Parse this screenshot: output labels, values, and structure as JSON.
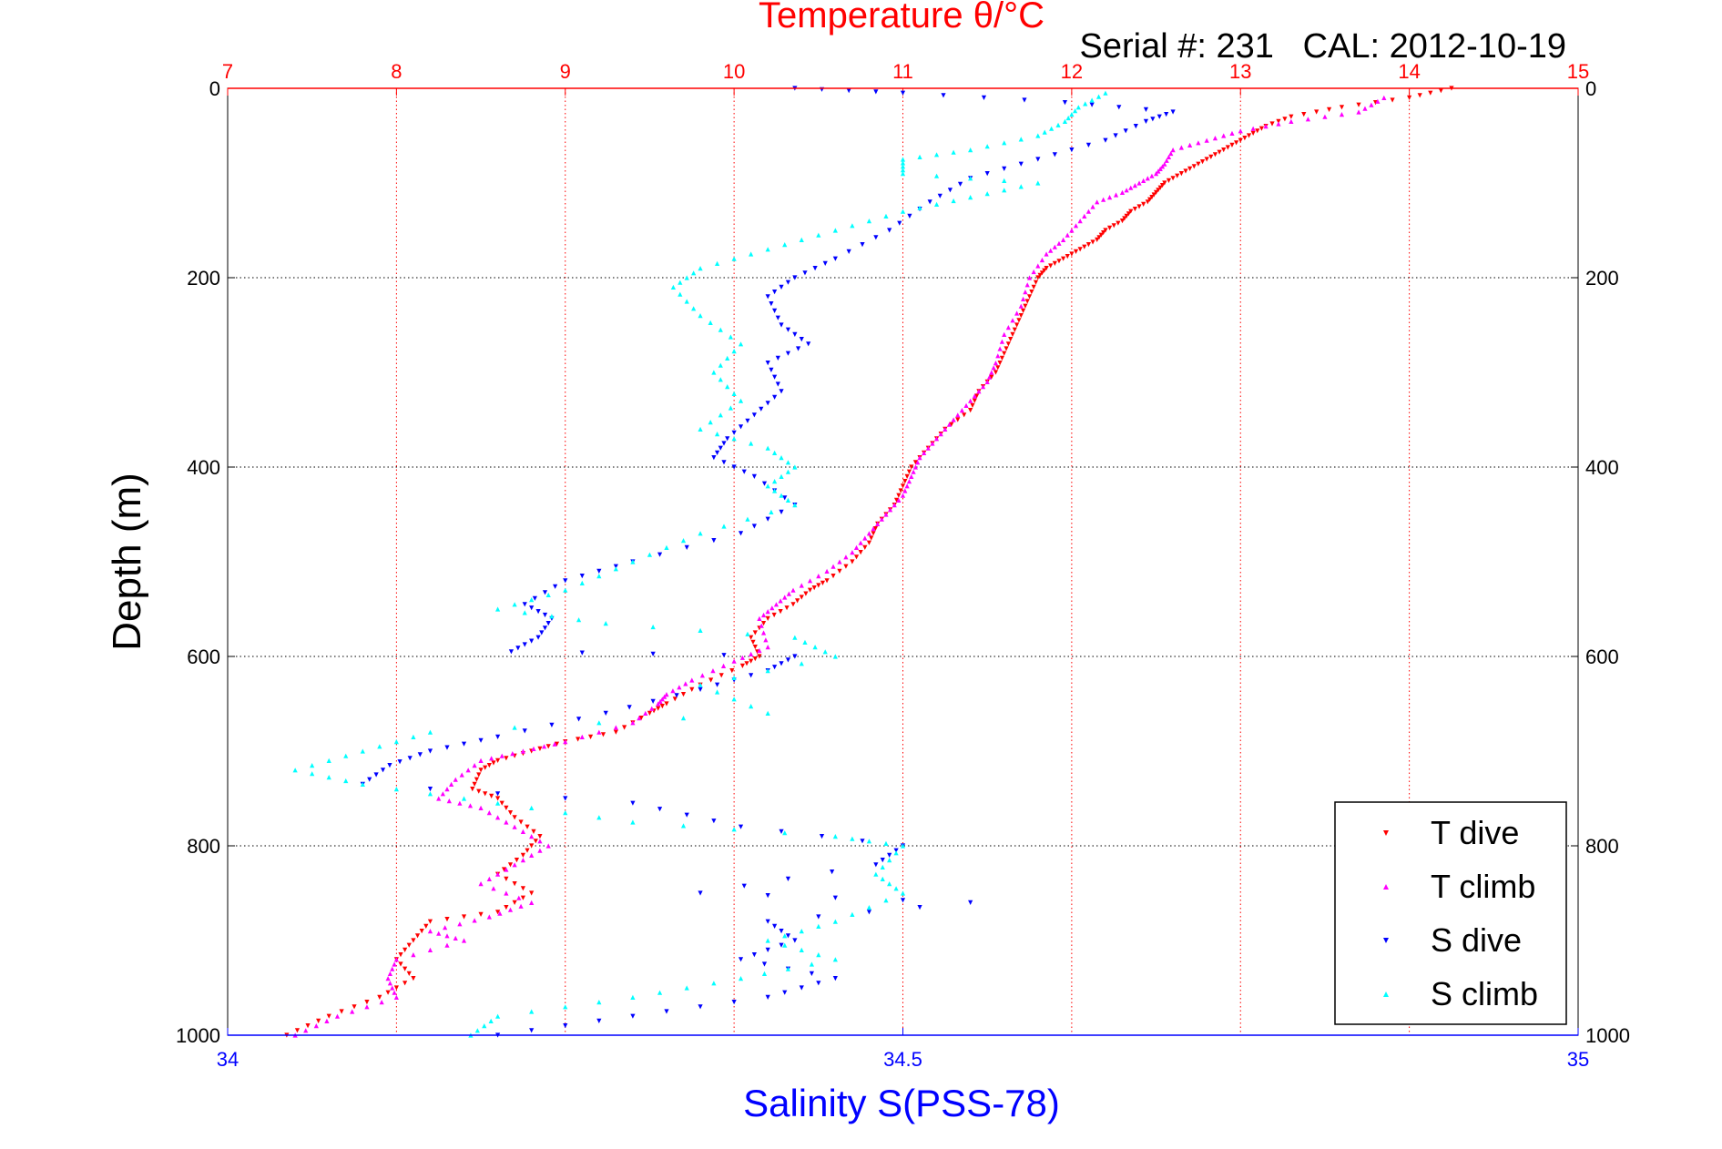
{
  "chart_data": {
    "type": "scatter",
    "title": "Temperature θ/°C",
    "subtitle": "Serial #: 231   CAL: 2012-10-19",
    "xlabel": "Salinity S(PSS-78)",
    "ylabel": "Depth (m)",
    "ylim": [
      0,
      1000
    ],
    "y_reversed": true,
    "y_ticks": [
      "0",
      "200",
      "400",
      "600",
      "800",
      "1000"
    ],
    "y_tick_values": [
      0,
      200,
      400,
      600,
      800,
      1000
    ],
    "top_axis": {
      "quantity": "temperature",
      "range": [
        7,
        15
      ],
      "ticks": [
        "7",
        "8",
        "9",
        "10",
        "11",
        "12",
        "13",
        "14",
        "15"
      ],
      "tick_values": [
        7,
        8,
        9,
        10,
        11,
        12,
        13,
        14,
        15
      ],
      "color": "#ff0000"
    },
    "bottom_axis": {
      "quantity": "salinity",
      "range": [
        34,
        35
      ],
      "ticks": [
        "34",
        "34.5",
        "35"
      ],
      "tick_values": [
        34,
        34.5,
        35
      ],
      "color": "#0000ff"
    },
    "grid": true,
    "legend_position": "bottom-right",
    "series": [
      {
        "name": "T dive",
        "axis": "top",
        "marker": "triangle-down",
        "color": "#ff0000",
        "points": [
          [
            14.25,
            0
          ],
          [
            14.0,
            10
          ],
          [
            13.6,
            20
          ],
          [
            13.3,
            30
          ],
          [
            13.15,
            40
          ],
          [
            13.05,
            50
          ],
          [
            12.95,
            60
          ],
          [
            12.85,
            70
          ],
          [
            12.75,
            80
          ],
          [
            12.65,
            90
          ],
          [
            12.55,
            100
          ],
          [
            12.5,
            110
          ],
          [
            12.45,
            120
          ],
          [
            12.35,
            130
          ],
          [
            12.3,
            140
          ],
          [
            12.2,
            150
          ],
          [
            12.15,
            160
          ],
          [
            12.05,
            170
          ],
          [
            11.95,
            180
          ],
          [
            11.85,
            190
          ],
          [
            11.8,
            200
          ],
          [
            11.75,
            220
          ],
          [
            11.7,
            240
          ],
          [
            11.65,
            260
          ],
          [
            11.6,
            280
          ],
          [
            11.55,
            300
          ],
          [
            11.45,
            320
          ],
          [
            11.4,
            340
          ],
          [
            11.25,
            360
          ],
          [
            11.15,
            380
          ],
          [
            11.05,
            400
          ],
          [
            11.0,
            420
          ],
          [
            10.95,
            440
          ],
          [
            10.85,
            460
          ],
          [
            10.8,
            480
          ],
          [
            10.7,
            500
          ],
          [
            10.55,
            520
          ],
          [
            10.45,
            530
          ],
          [
            10.35,
            545
          ],
          [
            10.2,
            560
          ],
          [
            10.1,
            580
          ],
          [
            10.15,
            600
          ],
          [
            10.05,
            610
          ],
          [
            9.8,
            630
          ],
          [
            9.6,
            650
          ],
          [
            9.5,
            660
          ],
          [
            9.3,
            680
          ],
          [
            9.0,
            690
          ],
          [
            8.8,
            700
          ],
          [
            8.6,
            710
          ],
          [
            8.5,
            720
          ],
          [
            8.45,
            740
          ],
          [
            8.6,
            750
          ],
          [
            8.7,
            770
          ],
          [
            8.85,
            790
          ],
          [
            8.75,
            810
          ],
          [
            8.6,
            830
          ],
          [
            8.8,
            850
          ],
          [
            8.6,
            870
          ],
          [
            8.2,
            880
          ],
          [
            8.1,
            900
          ],
          [
            8.0,
            920
          ],
          [
            8.1,
            940
          ],
          [
            7.9,
            960
          ],
          [
            7.6,
            980
          ],
          [
            7.35,
            1000
          ]
        ]
      },
      {
        "name": "T climb",
        "axis": "top",
        "marker": "triangle-up",
        "color": "#ff00ff",
        "points": [
          [
            13.85,
            10
          ],
          [
            13.7,
            25
          ],
          [
            13.3,
            35
          ],
          [
            13.0,
            45
          ],
          [
            12.8,
            55
          ],
          [
            12.6,
            65
          ],
          [
            12.55,
            80
          ],
          [
            12.5,
            90
          ],
          [
            12.4,
            100
          ],
          [
            12.3,
            110
          ],
          [
            12.15,
            120
          ],
          [
            12.05,
            140
          ],
          [
            11.95,
            160
          ],
          [
            11.85,
            175
          ],
          [
            11.75,
            200
          ],
          [
            11.7,
            230
          ],
          [
            11.6,
            260
          ],
          [
            11.55,
            290
          ],
          [
            11.5,
            310
          ],
          [
            11.4,
            330
          ],
          [
            11.3,
            350
          ],
          [
            11.2,
            370
          ],
          [
            11.1,
            390
          ],
          [
            11.05,
            410
          ],
          [
            11.0,
            430
          ],
          [
            10.9,
            450
          ],
          [
            10.8,
            470
          ],
          [
            10.7,
            490
          ],
          [
            10.55,
            510
          ],
          [
            10.35,
            530
          ],
          [
            10.25,
            545
          ],
          [
            10.15,
            560
          ],
          [
            10.2,
            590
          ],
          [
            10.0,
            605
          ],
          [
            9.75,
            625
          ],
          [
            9.6,
            640
          ],
          [
            9.55,
            650
          ],
          [
            9.4,
            670
          ],
          [
            9.0,
            690
          ],
          [
            8.75,
            700
          ],
          [
            8.5,
            710
          ],
          [
            8.35,
            730
          ],
          [
            8.25,
            750
          ],
          [
            8.5,
            760
          ],
          [
            8.7,
            780
          ],
          [
            8.9,
            800
          ],
          [
            8.7,
            820
          ],
          [
            8.5,
            840
          ],
          [
            8.8,
            860
          ],
          [
            8.55,
            875
          ],
          [
            8.2,
            890
          ],
          [
            8.4,
            900
          ],
          [
            8.0,
            920
          ],
          [
            7.95,
            940
          ],
          [
            8.0,
            960
          ],
          [
            7.65,
            980
          ],
          [
            7.4,
            1000
          ]
        ]
      },
      {
        "name": "S dive",
        "axis": "bottom",
        "marker": "triangle-down",
        "color": "#0000ff",
        "points": [
          [
            34.42,
            0
          ],
          [
            34.5,
            5
          ],
          [
            34.62,
            15
          ],
          [
            34.7,
            25
          ],
          [
            34.68,
            35
          ],
          [
            34.65,
            55
          ],
          [
            34.6,
            75
          ],
          [
            34.55,
            95
          ],
          [
            34.52,
            120
          ],
          [
            34.49,
            150
          ],
          [
            34.45,
            180
          ],
          [
            34.42,
            200
          ],
          [
            34.4,
            220
          ],
          [
            34.41,
            250
          ],
          [
            34.43,
            270
          ],
          [
            34.4,
            290
          ],
          [
            34.41,
            320
          ],
          [
            34.39,
            345
          ],
          [
            34.37,
            370
          ],
          [
            34.36,
            390
          ],
          [
            34.39,
            410
          ],
          [
            34.42,
            440
          ],
          [
            34.38,
            470
          ],
          [
            34.3,
            500
          ],
          [
            34.25,
            520
          ],
          [
            34.22,
            545
          ],
          [
            34.24,
            560
          ],
          [
            34.23,
            580
          ],
          [
            34.21,
            595
          ],
          [
            34.42,
            600
          ],
          [
            34.4,
            615
          ],
          [
            34.35,
            635
          ],
          [
            34.28,
            660
          ],
          [
            34.2,
            685
          ],
          [
            34.15,
            700
          ],
          [
            34.12,
            715
          ],
          [
            34.1,
            735
          ],
          [
            34.3,
            755
          ],
          [
            34.38,
            780
          ],
          [
            34.5,
            800
          ],
          [
            34.48,
            820
          ],
          [
            34.35,
            850
          ],
          [
            34.55,
            860
          ],
          [
            34.4,
            880
          ],
          [
            34.42,
            900
          ],
          [
            34.38,
            920
          ],
          [
            34.45,
            940
          ],
          [
            34.4,
            960
          ],
          [
            34.3,
            980
          ],
          [
            34.2,
            1000
          ]
        ]
      },
      {
        "name": "S climb",
        "axis": "bottom",
        "marker": "triangle-up",
        "color": "#00ffff",
        "points": [
          [
            34.65,
            5
          ],
          [
            34.63,
            20
          ],
          [
            34.62,
            35
          ],
          [
            34.6,
            50
          ],
          [
            34.55,
            65
          ],
          [
            34.5,
            75
          ],
          [
            34.5,
            90
          ],
          [
            34.6,
            100
          ],
          [
            34.55,
            115
          ],
          [
            34.5,
            130
          ],
          [
            34.45,
            150
          ],
          [
            34.4,
            170
          ],
          [
            34.35,
            190
          ],
          [
            34.33,
            210
          ],
          [
            34.35,
            240
          ],
          [
            34.38,
            270
          ],
          [
            34.36,
            300
          ],
          [
            34.38,
            330
          ],
          [
            34.35,
            360
          ],
          [
            34.4,
            380
          ],
          [
            34.42,
            400
          ],
          [
            34.4,
            420
          ],
          [
            34.42,
            440
          ],
          [
            34.35,
            470
          ],
          [
            34.3,
            500
          ],
          [
            34.25,
            530
          ],
          [
            34.2,
            550
          ],
          [
            34.28,
            565
          ],
          [
            34.42,
            580
          ],
          [
            34.45,
            600
          ],
          [
            34.35,
            630
          ],
          [
            34.4,
            660
          ],
          [
            34.15,
            680
          ],
          [
            34.1,
            700
          ],
          [
            34.05,
            720
          ],
          [
            34.1,
            735
          ],
          [
            34.2,
            755
          ],
          [
            34.3,
            775
          ],
          [
            34.45,
            790
          ],
          [
            34.5,
            800
          ],
          [
            34.48,
            830
          ],
          [
            34.5,
            850
          ],
          [
            34.45,
            880
          ],
          [
            34.4,
            900
          ],
          [
            34.45,
            920
          ],
          [
            34.38,
            940
          ],
          [
            34.3,
            960
          ],
          [
            34.2,
            980
          ],
          [
            34.18,
            1000
          ]
        ]
      }
    ]
  }
}
